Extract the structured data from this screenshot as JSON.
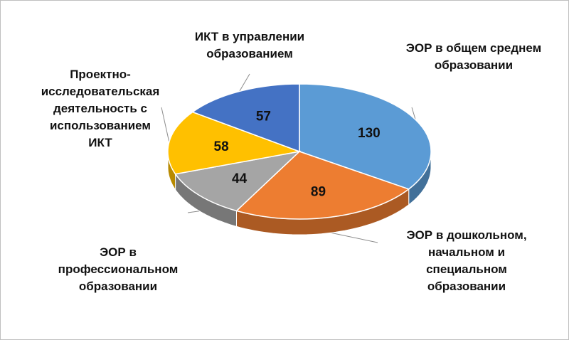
{
  "chart_data": {
    "type": "pie",
    "title": "",
    "categories": [
      "ЭОР в общем среднем образовании",
      "ЭОР в дошкольном, начальном и специальном образовании",
      "ЭОР в профессиональном образовании",
      "Проектно-исследовательская деятельность с использованием ИКТ",
      "ИКТ в управлении образованием"
    ],
    "values": [
      130,
      89,
      44,
      58,
      57
    ],
    "colors": [
      "#5b9bd5",
      "#ed7d31",
      "#a5a5a5",
      "#ffc000",
      "#4472c4"
    ],
    "legend": "none",
    "labels": [
      [
        "ЭОР в общем среднем",
        "образовании"
      ],
      [
        "ЭОР в дошкольном,",
        "начальном и",
        "специальном",
        "образовании"
      ],
      [
        "ЭОР в",
        "профессиональном",
        "образовании"
      ],
      [
        "Проектно-",
        "исследовательская",
        "деятельность с",
        "использованием",
        "ИКТ"
      ],
      [
        "ИКТ в управлении",
        "образованием"
      ]
    ]
  }
}
